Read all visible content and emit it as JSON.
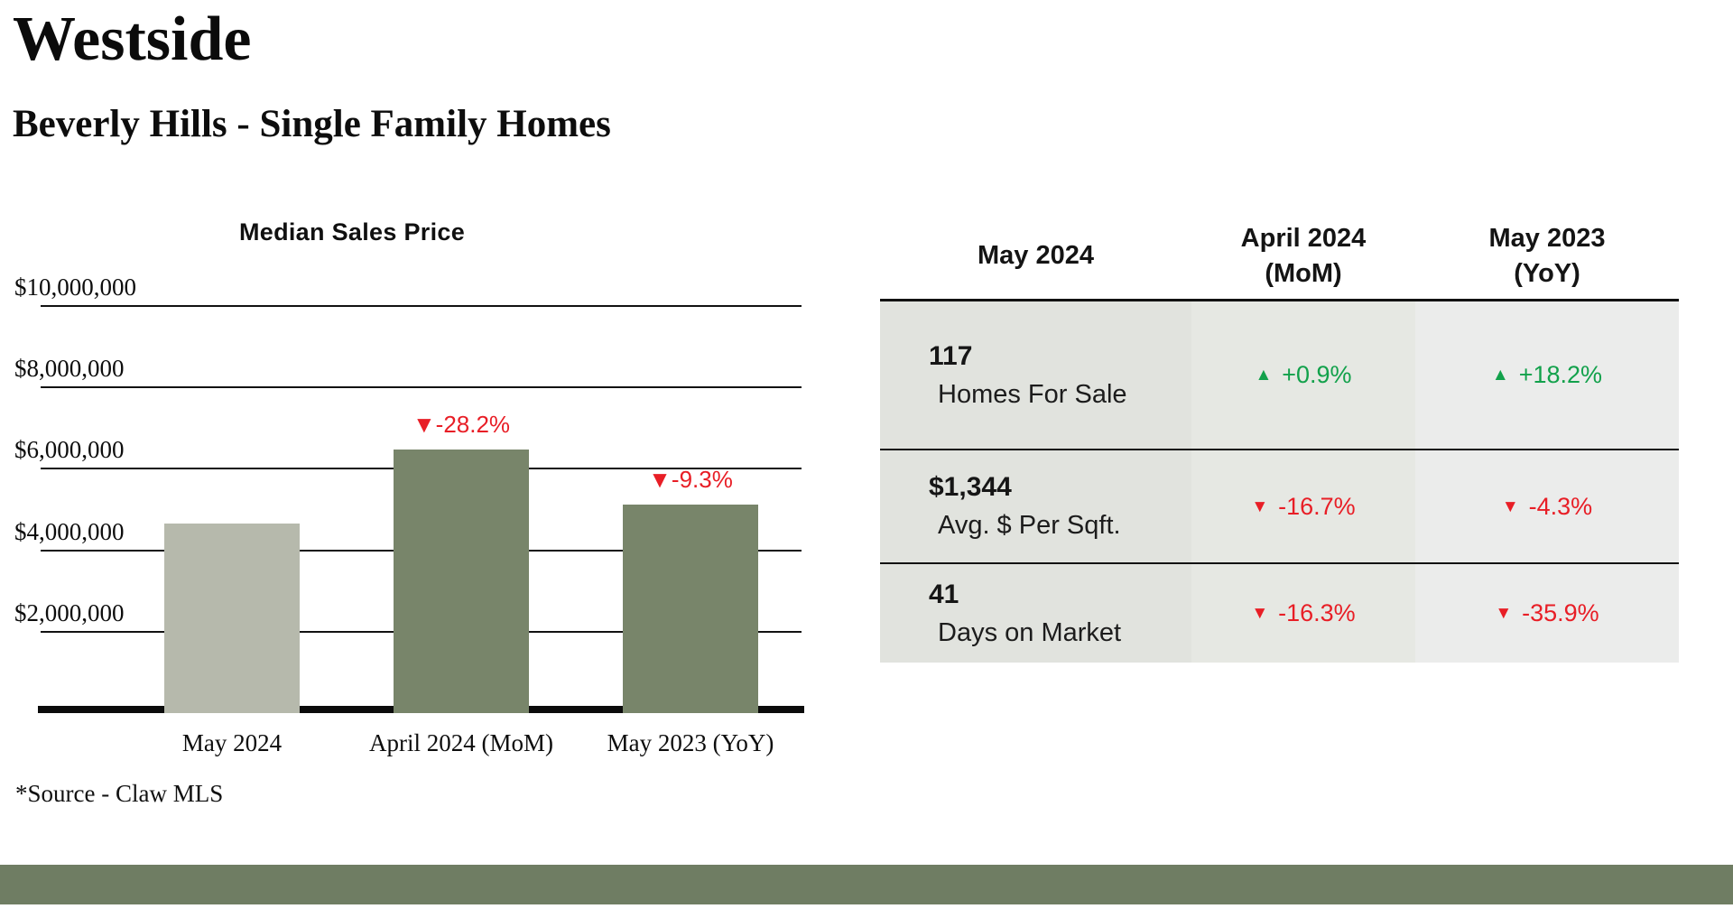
{
  "page": {
    "region_title": "Westside",
    "subtitle": "Beverly Hills - Single Family Homes",
    "source_note": "*Source - Claw MLS"
  },
  "chart_data": {
    "type": "bar",
    "title": "Median Sales Price",
    "categories": [
      "May 2024",
      "April 2024 (MoM)",
      "May 2023 (YoY)"
    ],
    "values_usd_estimated": [
      4650000,
      6480000,
      5125000
    ],
    "annotations": [
      "",
      "▼-28.2%",
      "▼-9.3%"
    ],
    "ylim": [
      0,
      10000000
    ],
    "yticks": [
      {
        "value": 10000000,
        "label": "$10,000,000"
      },
      {
        "value": 8000000,
        "label": "$8,000,000"
      },
      {
        "value": 6000000,
        "label": "$6,000,000"
      },
      {
        "value": 4000000,
        "label": "$4,000,000"
      },
      {
        "value": 2000000,
        "label": "$2,000,000"
      }
    ],
    "grid": true,
    "legend": "none",
    "bar_colors": [
      "#b6b9ac",
      "#78856a",
      "#78856a"
    ],
    "annotation_color": "#e81e26"
  },
  "stats_table": {
    "columns": [
      {
        "line1": "May 2024",
        "line2": ""
      },
      {
        "line1": "April 2024",
        "line2": "(MoM)"
      },
      {
        "line1": "May 2023",
        "line2": "(YoY)"
      }
    ],
    "rows": [
      {
        "value": "117",
        "label": "Homes For Sale",
        "mom": {
          "arrow": "▲",
          "text": "+0.9%",
          "dir": "up"
        },
        "yoy": {
          "arrow": "▲",
          "text": "+18.2%",
          "dir": "up"
        }
      },
      {
        "value": "$1,344",
        "label": "Avg. $ Per Sqft.",
        "mom": {
          "arrow": "▼",
          "text": "-16.7%",
          "dir": "down"
        },
        "yoy": {
          "arrow": "▼",
          "text": "-4.3%",
          "dir": "down"
        }
      },
      {
        "value": "41",
        "label": "Days on Market",
        "mom": {
          "arrow": "▼",
          "text": "-16.3%",
          "dir": "down"
        },
        "yoy": {
          "arrow": "▼",
          "text": "-35.9%",
          "dir": "down"
        }
      }
    ],
    "colors": {
      "up": "#12a14b",
      "down": "#e81e26"
    }
  },
  "footer": {
    "bar_color": "#6f7d63"
  }
}
